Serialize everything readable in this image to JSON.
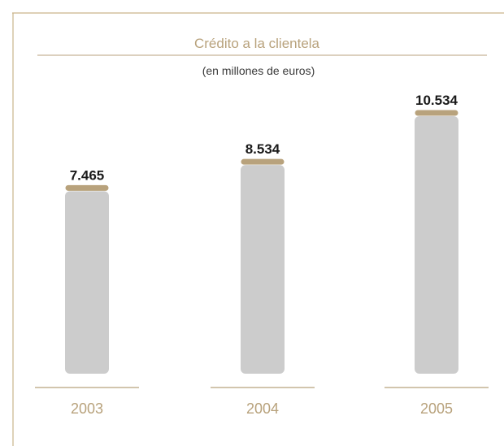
{
  "colors": {
    "accent": "#b8a27c",
    "bar": "#cccccc",
    "frame": "#c9b48a"
  },
  "chart_data": {
    "type": "bar",
    "title": "Crédito a la clientela",
    "subtitle": "(en millones de euros)",
    "categories": [
      "2003",
      "2004",
      "2005"
    ],
    "values": [
      7465,
      8534,
      10534
    ],
    "value_labels": [
      "7.465",
      "8.534",
      "10.534"
    ],
    "ylim": [
      0,
      10534
    ],
    "grid": false
  }
}
